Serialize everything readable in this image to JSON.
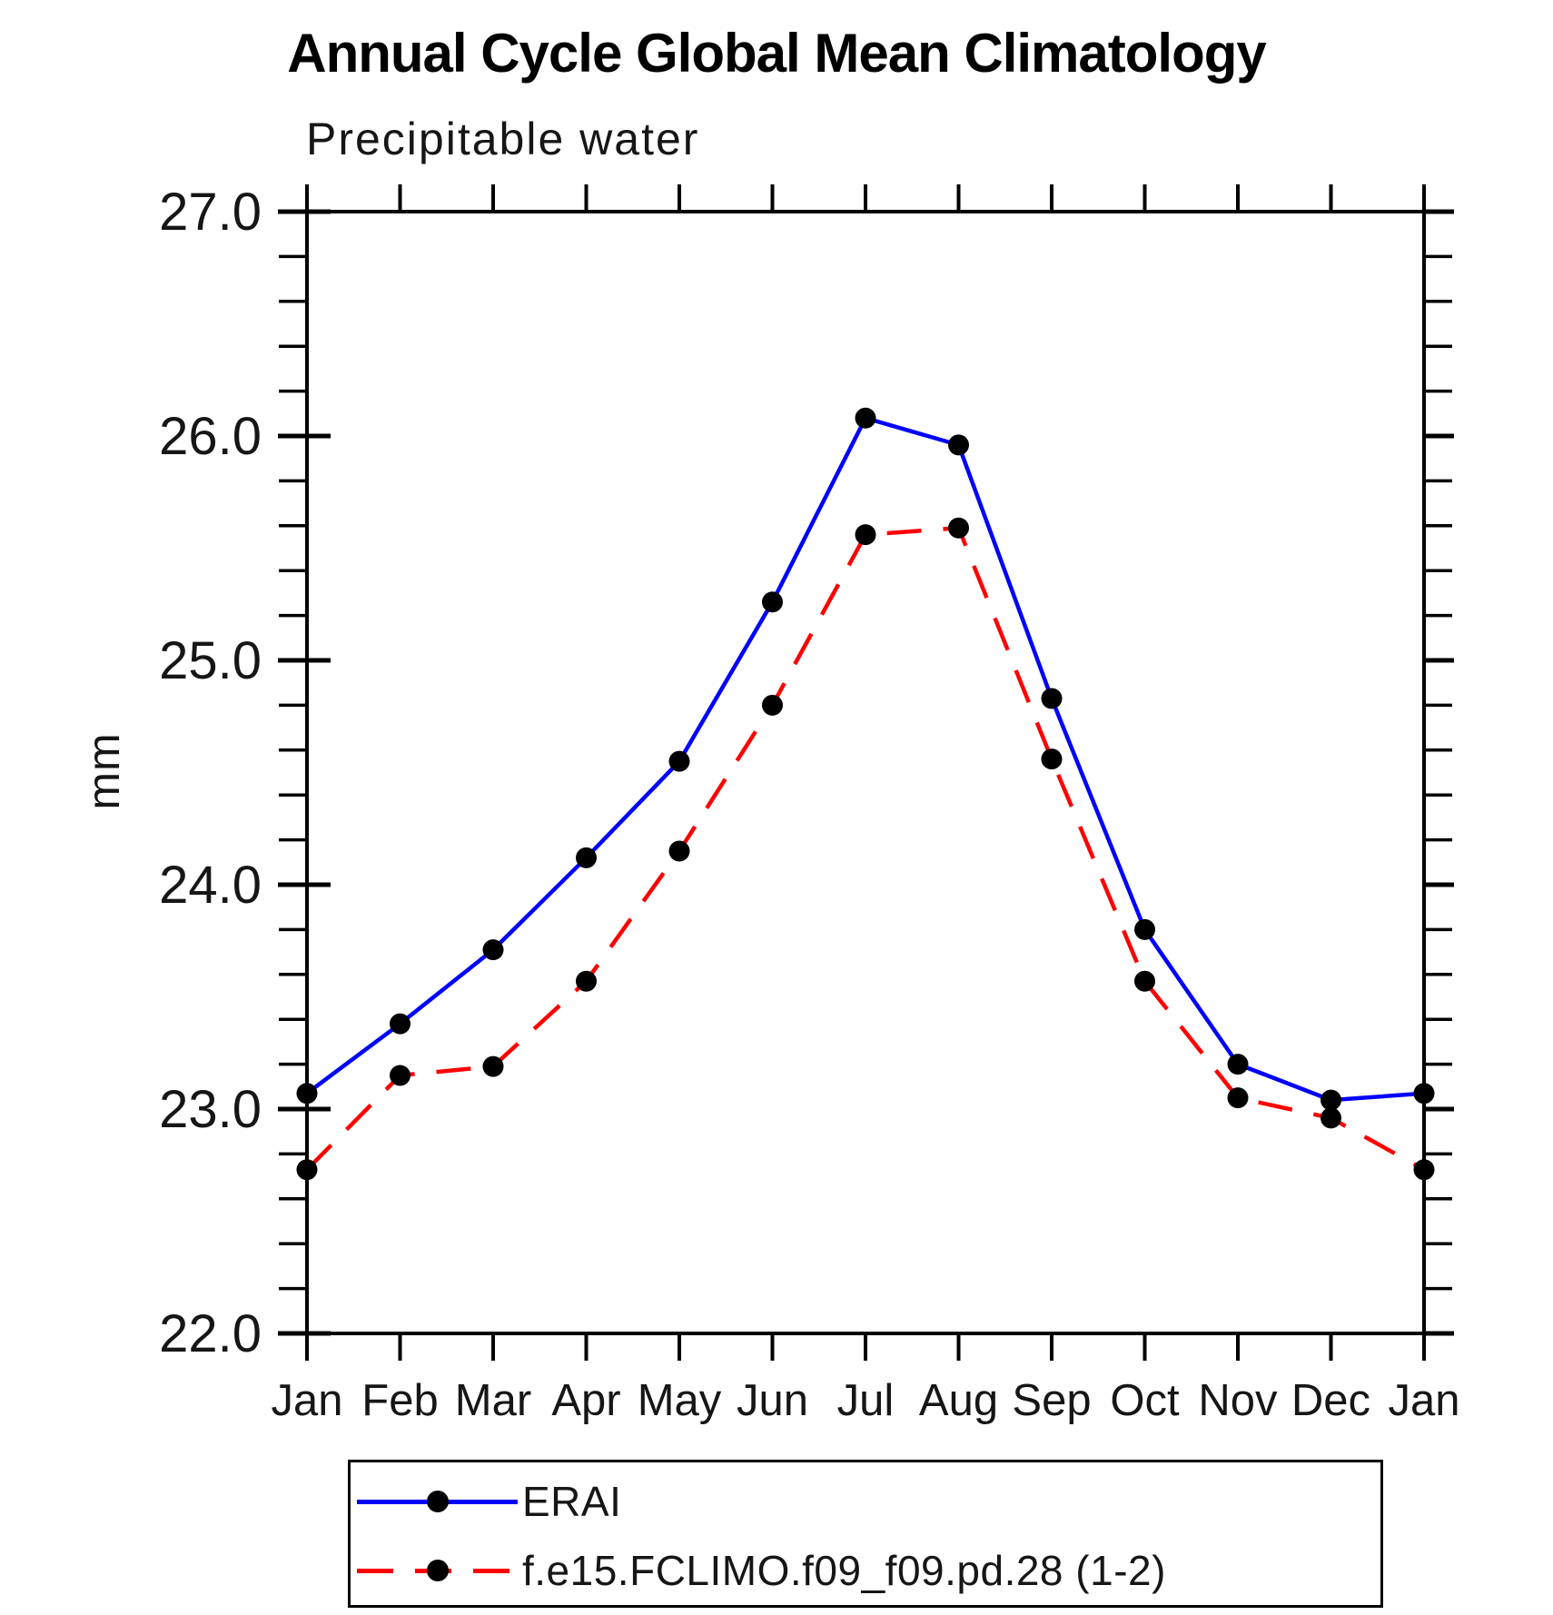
{
  "page": {
    "title": "Annual Cycle Global Mean Climatology",
    "subtitle": "Precipitable water"
  },
  "chart_data": {
    "type": "line",
    "title": "Annual Cycle Global Mean Climatology",
    "subtitle": "Precipitable water",
    "ylabel": "mm",
    "xlabel": "",
    "ylim": [
      22.0,
      27.0
    ],
    "ytick_step": 1.0,
    "ytick_minor_step": 0.2,
    "ytick_labels": [
      "22.0",
      "23.0",
      "24.0",
      "25.0",
      "26.0",
      "27.0"
    ],
    "categories": [
      "Jan",
      "Feb",
      "Mar",
      "Apr",
      "May",
      "Jun",
      "Jul",
      "Aug",
      "Sep",
      "Oct",
      "Nov",
      "Dec",
      "Jan"
    ],
    "grid": false,
    "legend_position": "bottom",
    "axis_color": "#000000",
    "marker": "filled-circle",
    "marker_color": "#000000",
    "series": [
      {
        "name": "ERAI",
        "color": "#0000ff",
        "line_style": "solid",
        "values": [
          23.07,
          23.38,
          23.71,
          24.12,
          24.55,
          25.26,
          26.08,
          25.96,
          24.83,
          23.8,
          23.2,
          23.04,
          23.07
        ]
      },
      {
        "name": "f.e15.FCLIMO.f09_f09.pd.28 (1-2)",
        "color": "#ff0000",
        "line_style": "dashed",
        "values": [
          22.73,
          23.15,
          23.19,
          23.57,
          24.15,
          24.8,
          25.56,
          25.59,
          24.56,
          23.57,
          23.05,
          22.96,
          22.73
        ]
      }
    ]
  }
}
